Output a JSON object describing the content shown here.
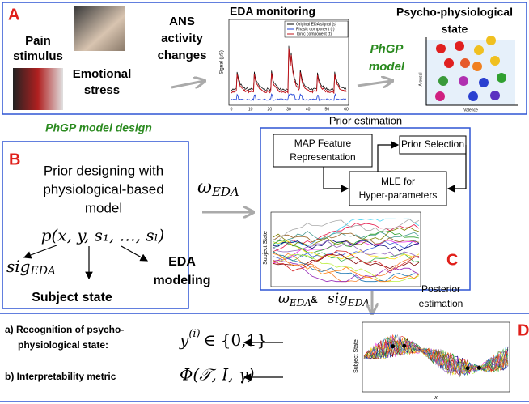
{
  "panel_a": {
    "label": "A",
    "pain_stimulus": [
      "Pain",
      "stimulus"
    ],
    "emotional_stress": [
      "Emotional",
      "stress"
    ],
    "ans_changes": [
      "ANS",
      "activity",
      "changes"
    ],
    "eda_title": "EDA monitoring",
    "legend": [
      "Original EDA signal (s)",
      "Phasic component (r)",
      "Tonic component (t)"
    ],
    "y_label": "Signal (μS)",
    "x_ticks": [
      "0",
      "10",
      "20",
      "30",
      "40",
      "50",
      "60"
    ],
    "state_title": [
      "Psycho-physiological",
      "state"
    ],
    "model": [
      "PhGP",
      "model"
    ],
    "arousal": "Arousal",
    "valence": "Valence"
  },
  "design_title": "PhGP model design",
  "panel_b": {
    "label": "B",
    "prior_text": [
      "Prior designing with",
      "physiological-based",
      "model"
    ],
    "formula": "p(x, y, s₁, …, sₗ)",
    "sig": {
      "base": "sig",
      "sub": "EDA"
    },
    "eda_modeling": [
      "EDA",
      "modeling"
    ],
    "subject_state": "Subject state"
  },
  "omega": {
    "base": "ω",
    "sub": "EDA"
  },
  "panel_c": {
    "label": "C",
    "title": "Prior estimation",
    "map_box": [
      "MAP Feature",
      "Representation"
    ],
    "prior_selection": "Prior Selection",
    "mle_box": [
      "MLE for",
      "Hyper-parameters"
    ],
    "y_label": "Subject State"
  },
  "posterior": {
    "omega": {
      "base": "ω",
      "sub": "EDA"
    },
    "amp": "&",
    "sig": {
      "base": "sig",
      "sub": "EDA"
    },
    "label": [
      "Posterior",
      "estimation"
    ]
  },
  "panel_d": {
    "label": "D",
    "recognition": [
      "a) Recognition of psycho-",
      "physiological state:"
    ],
    "interpretability": "b) Interpretability metric",
    "y_formula": {
      "base": "y",
      "sup": "(i)",
      "rest": "∈ {0,1}"
    },
    "phi_formula": "Φ(𝒯, I, γ)",
    "y_label": "Subject State",
    "x_label": "x"
  }
}
